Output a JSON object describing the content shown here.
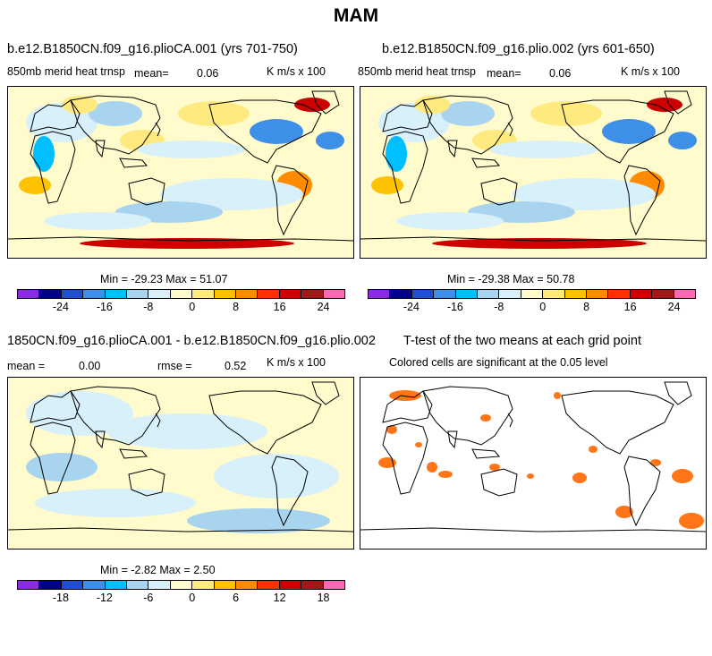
{
  "title": "MAM",
  "colors": {
    "scale": [
      "#8a2be2",
      "#00008b",
      "#1e4fd0",
      "#3d8fe8",
      "#00bfff",
      "#a8d4f0",
      "#d7f0fa",
      "#fffbcc",
      "#ffea80",
      "#ffc200",
      "#ff8c00",
      "#ff3000",
      "#cc0000",
      "#a01818",
      "#ff69b4"
    ],
    "land_outline": "#000000",
    "sig": "#ff7518"
  },
  "panels": {
    "p1": {
      "title": "b.e12.B1850CN.f09_g16.plioCA.001 (yrs 701-750)",
      "var": "850mb merid heat trnsp",
      "mean_label": "mean=",
      "mean_value": "0.06",
      "units": "K m/s x 100",
      "minmax": "Min = -29.23 Max =  51.07"
    },
    "p2": {
      "title": "b.e12.B1850CN.f09_g16.plio.002 (yrs 601-650)",
      "var": "850mb merid heat trnsp",
      "mean_label": "mean=",
      "mean_value": "0.06",
      "units": "K m/s x 100",
      "minmax": "Min = -29.38 Max =  50.78"
    },
    "p3": {
      "title": "1850CN.f09_g16.plioCA.001 - b.e12.B1850CN.f09_g16.plio.002",
      "mean_label": "mean =",
      "mean_value": "0.00",
      "rmse_label": "rmse =",
      "rmse_value": "0.52",
      "units": "K m/s x 100",
      "minmax": "Min =  -2.82 Max =   2.50"
    },
    "p4": {
      "title": "T-test of the two means at each grid point",
      "subtitle": "Colored cells are significant at the 0.05 level"
    }
  },
  "chart_data": [
    {
      "type": "heatmap",
      "title": "b.e12.B1850CN.f09_g16.plioCA.001 (yrs 701-750)",
      "variable": "850mb merid heat trnsp",
      "units": "K m/s x 100",
      "mean": 0.06,
      "min": -29.23,
      "max": 51.07,
      "colorbar_ticks": [
        -24,
        -16,
        -8,
        0,
        8,
        16,
        24
      ],
      "colorbar_levels": [
        -28,
        -24,
        -20,
        -16,
        -12,
        -8,
        -4,
        0,
        4,
        8,
        12,
        16,
        20,
        24,
        28
      ]
    },
    {
      "type": "heatmap",
      "title": "b.e12.B1850CN.f09_g16.plio.002 (yrs 601-650)",
      "variable": "850mb merid heat trnsp",
      "units": "K m/s x 100",
      "mean": 0.06,
      "min": -29.38,
      "max": 50.78,
      "colorbar_ticks": [
        -24,
        -16,
        -8,
        0,
        8,
        16,
        24
      ],
      "colorbar_levels": [
        -28,
        -24,
        -20,
        -16,
        -12,
        -8,
        -4,
        0,
        4,
        8,
        12,
        16,
        20,
        24,
        28
      ]
    },
    {
      "type": "heatmap",
      "title": "1850CN.f09_g16.plioCA.001 - b.e12.B1850CN.f09_g16.plio.002",
      "units": "K m/s x 100",
      "mean": 0.0,
      "rmse": 0.52,
      "min": -2.82,
      "max": 2.5,
      "colorbar_ticks": [
        -18,
        -12,
        -6,
        0,
        6,
        12,
        18
      ],
      "colorbar_levels": [
        -21,
        -18,
        -15,
        -12,
        -9,
        -6,
        -3,
        0,
        3,
        6,
        9,
        12,
        15,
        18,
        21
      ]
    },
    {
      "type": "heatmap",
      "title": "T-test of the two means at each grid point",
      "subtitle": "Colored cells are significant at the 0.05 level",
      "significance_level": 0.05
    }
  ]
}
